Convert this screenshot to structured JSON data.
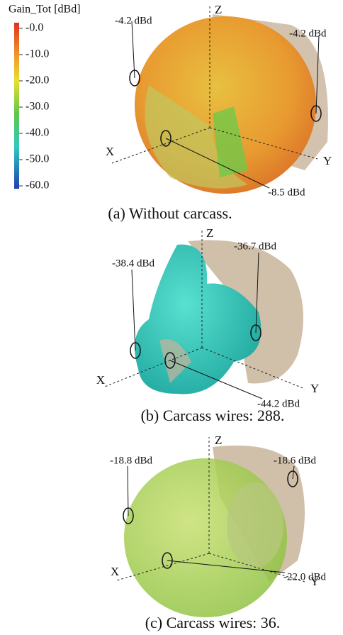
{
  "colorbar": {
    "title": "Gain_Tot [dBd]",
    "ticks": [
      {
        "value": 0,
        "label": "-0.0"
      },
      {
        "value": -10,
        "label": "-10.0"
      },
      {
        "value": -20,
        "label": "-20.0"
      },
      {
        "value": -30,
        "label": "-30.0"
      },
      {
        "value": -40,
        "label": "-40.0"
      },
      {
        "value": -50,
        "label": "-50.0"
      },
      {
        "value": -60,
        "label": "-60.0"
      }
    ]
  },
  "panels": [
    {
      "caption": "(a) Without carcass.",
      "axes": {
        "x": "X",
        "y": "Y",
        "z": "Z"
      },
      "annotations": [
        "-4.2 dBd",
        "-4.2 dBd",
        "-8.5 dBd"
      ]
    },
    {
      "caption": "(b) Carcass wires: 288.",
      "axes": {
        "x": "X",
        "y": "Y",
        "z": "Z"
      },
      "annotations": [
        "-38.4 dBd",
        "-36.7 dBd",
        "-44.2 dBd"
      ]
    },
    {
      "caption": "(c) Carcass wires: 36.",
      "axes": {
        "x": "X",
        "y": "Y",
        "z": "Z"
      },
      "annotations": [
        "-18.8 dBd",
        "-18.6 dBd",
        "-22.0 dBd"
      ]
    }
  ]
}
